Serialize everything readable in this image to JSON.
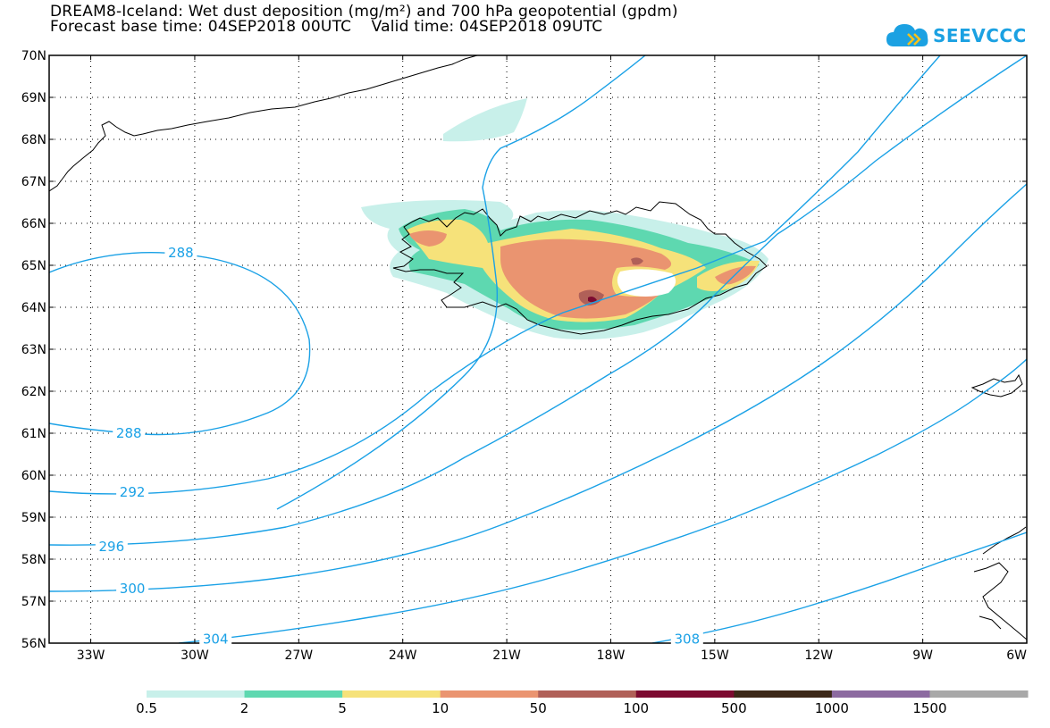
{
  "title": {
    "line1": "DREAM8-Iceland: Wet dust deposition (mg/m²) and 700 hPa geopotential (gpdm)",
    "line2": "Forecast base time: 04SEP2018 00UTC    Valid time: 04SEP2018 09UTC"
  },
  "logo": {
    "text": "SEEVCCC",
    "color": "#1ba1e2",
    "icon": "cloud-icon"
  },
  "map": {
    "lat_labels": [
      "70N",
      "69N",
      "68N",
      "67N",
      "66N",
      "65N",
      "64N",
      "63N",
      "62N",
      "61N",
      "60N",
      "59N",
      "58N",
      "57N",
      "56N"
    ],
    "lon_labels": [
      "33W",
      "30W",
      "27W",
      "24W",
      "21W",
      "18W",
      "15W",
      "12W",
      "9W",
      "6W"
    ],
    "lat_range": [
      56,
      70
    ],
    "lon_range": [
      -34.2,
      -6
    ],
    "contour_color": "#1aa1e6",
    "contour_labels": [
      {
        "value": "288",
        "lon": -30.4,
        "lat": 65.3
      },
      {
        "value": "288",
        "lon": -31.9,
        "lat": 61.0
      },
      {
        "value": "292",
        "lon": -31.8,
        "lat": 59.6
      },
      {
        "value": "296",
        "lon": -32.4,
        "lat": 58.3
      },
      {
        "value": "300",
        "lon": -31.8,
        "lat": 57.3
      },
      {
        "value": "304",
        "lon": -29.4,
        "lat": 56.1
      },
      {
        "value": "308",
        "lon": -15.8,
        "lat": 56.1
      }
    ]
  },
  "legend": {
    "colors": [
      "#c8f0ea",
      "#5ed8b0",
      "#f6e27a",
      "#ea9470",
      "#b06058",
      "#7c0a30",
      "#3c2818",
      "#8c6aa0",
      "#a8a8a8"
    ],
    "labels": [
      "0.5",
      "2",
      "5",
      "10",
      "50",
      "100",
      "500",
      "1000",
      "1500"
    ]
  }
}
